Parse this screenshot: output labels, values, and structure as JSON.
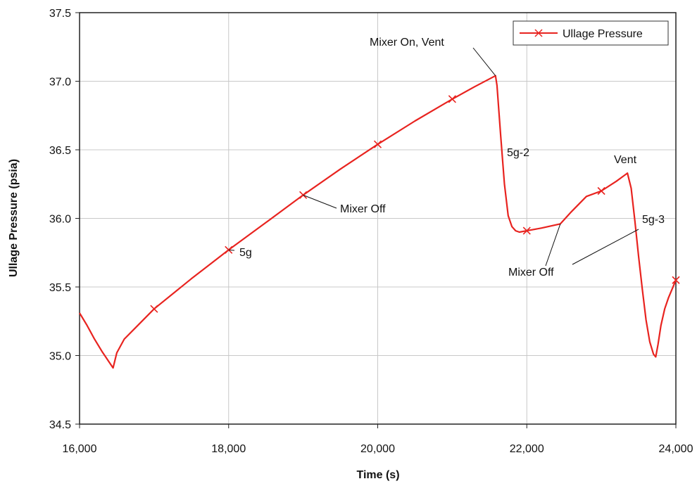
{
  "chart_data": {
    "type": "line",
    "xlabel": "Time (s)",
    "ylabel": "Ullage Pressure (psia)",
    "xlim": [
      16000,
      24000
    ],
    "ylim": [
      34.5,
      37.5
    ],
    "xticks": [
      16000,
      18000,
      20000,
      22000,
      24000
    ],
    "xtick_labels": [
      "16,000",
      "18,000",
      "20,000",
      "22,000",
      "24,000"
    ],
    "yticks": [
      34.5,
      35.0,
      35.5,
      36.0,
      36.5,
      37.0,
      37.5
    ],
    "ytick_labels": [
      "34.5",
      "35.0",
      "35.5",
      "36.0",
      "36.5",
      "37.0",
      "37.5"
    ],
    "grid": true,
    "legend_position": "top-right",
    "line_color": "#e8231f",
    "series": [
      {
        "name": "Ullage Pressure",
        "x": [
          16000,
          16100,
          16200,
          16300,
          16400,
          16450,
          16500,
          16600,
          16800,
          17000,
          17500,
          18000,
          18500,
          19000,
          19500,
          20000,
          20500,
          21000,
          21300,
          21580,
          21600,
          21650,
          21700,
          21750,
          21800,
          21850,
          21900,
          22000,
          22200,
          22450,
          22600,
          22800,
          23000,
          23200,
          23350,
          23400,
          23450,
          23500,
          23550,
          23600,
          23650,
          23700,
          23730,
          23760,
          23800,
          23850,
          23900,
          24000
        ],
        "y": [
          35.31,
          35.22,
          35.12,
          35.03,
          34.95,
          34.91,
          35.02,
          35.12,
          35.23,
          35.34,
          35.56,
          35.77,
          35.97,
          36.17,
          36.36,
          36.54,
          36.71,
          36.87,
          36.96,
          37.04,
          36.97,
          36.6,
          36.25,
          36.02,
          35.94,
          35.91,
          35.9,
          35.91,
          35.93,
          35.96,
          36.05,
          36.16,
          36.2,
          36.27,
          36.33,
          36.22,
          35.98,
          35.72,
          35.48,
          35.26,
          35.1,
          35.01,
          34.99,
          35.08,
          35.22,
          35.34,
          35.42,
          35.55
        ]
      }
    ],
    "markers": [
      {
        "x": 17000,
        "y": 35.34
      },
      {
        "x": 18000,
        "y": 35.77
      },
      {
        "x": 19000,
        "y": 36.17
      },
      {
        "x": 20000,
        "y": 36.54
      },
      {
        "x": 21000,
        "y": 36.87
      },
      {
        "x": 22000,
        "y": 35.91
      },
      {
        "x": 23000,
        "y": 36.2
      },
      {
        "x": 24000,
        "y": 35.55
      }
    ],
    "annotations": [
      {
        "text": "Mixer On, Vent"
      },
      {
        "text": "Mixer Off"
      },
      {
        "text": "5g"
      },
      {
        "text": "5g-2"
      },
      {
        "text": "Vent"
      },
      {
        "text": "5g-3"
      },
      {
        "text": "Mixer Off"
      }
    ]
  }
}
